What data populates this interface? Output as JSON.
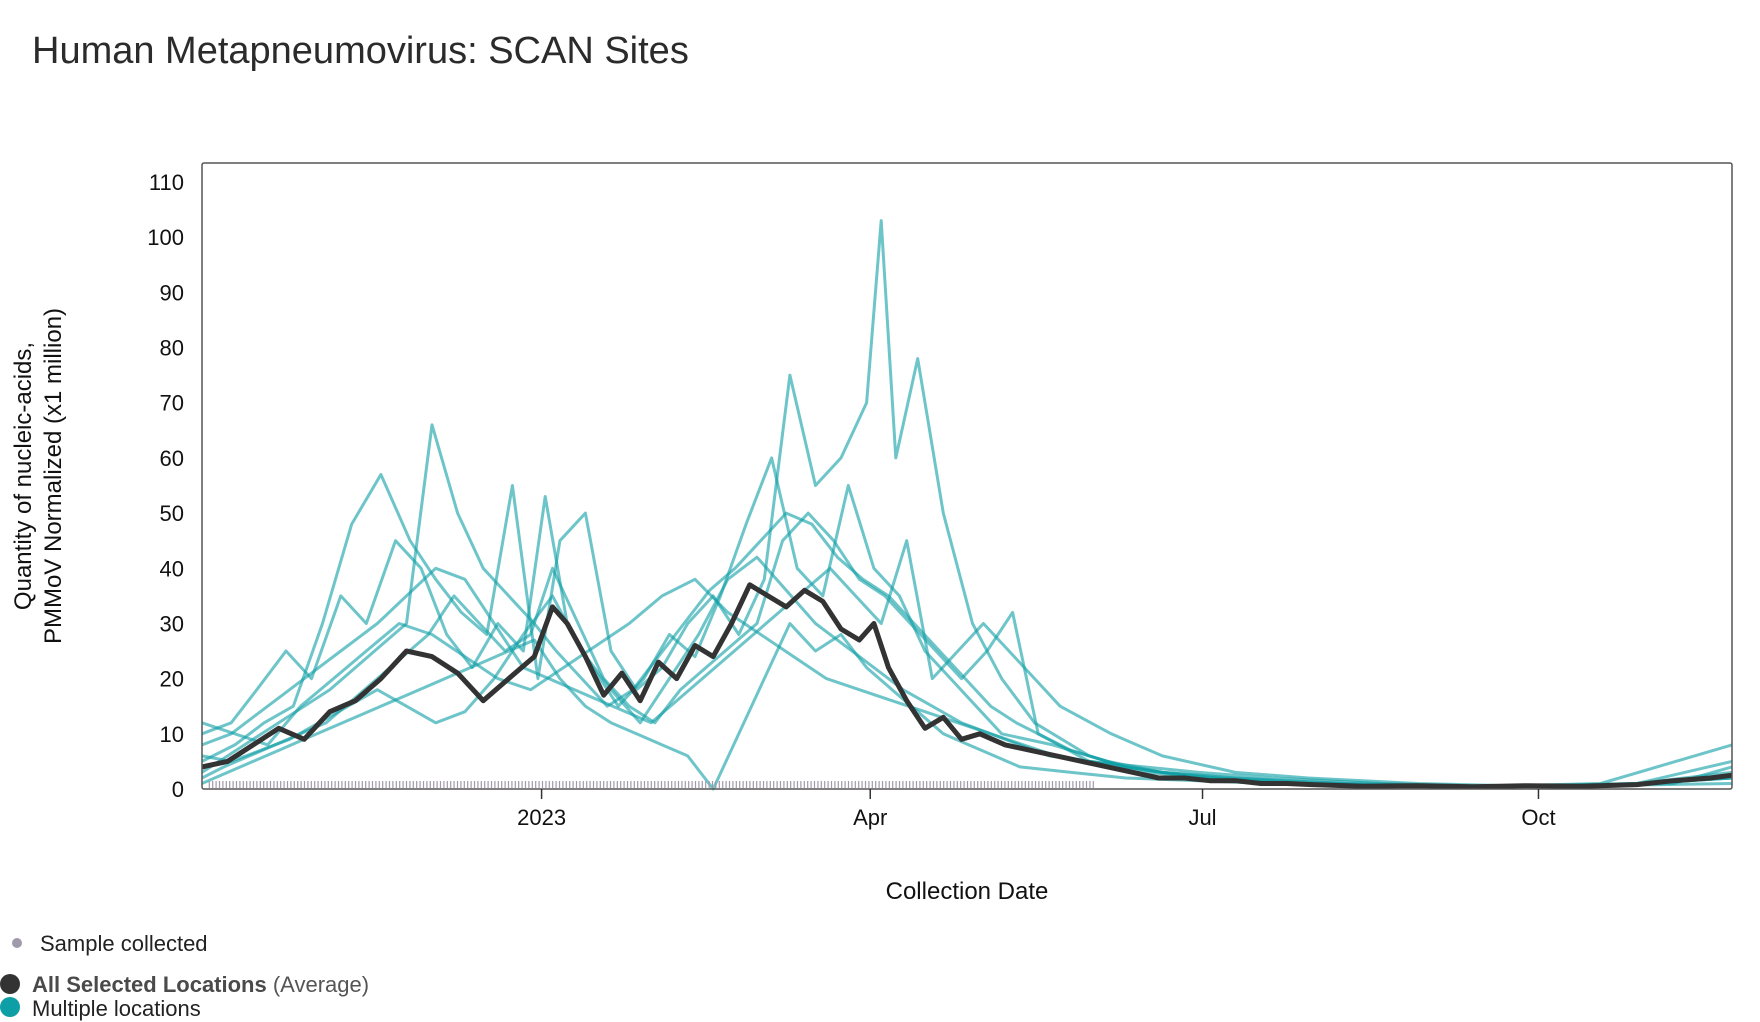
{
  "title": "Human Metapneumovirus: SCAN Sites",
  "colors": {
    "site": "#0e9ea5",
    "average": "#333333",
    "sample_marker": "#a09aaa",
    "frame": "#555555"
  },
  "legend": {
    "sample": "Sample collected",
    "average_label": "All Selected Locations",
    "average_suffix": "(Average)",
    "sites_label": "Multiple locations"
  },
  "chart_data": {
    "type": "line",
    "title": "Human Metapneumovirus: SCAN Sites",
    "xlabel": "Collection Date",
    "ylabel_line1": "Quantity of nucleic-acids,",
    "ylabel_line2": "PMMoV Normalized (x1 million)",
    "x_start": "2022-09-30",
    "x_end": "2023-11-23",
    "x_range_days": [
      -93,
      326
    ],
    "ylim": [
      0,
      110
    ],
    "yticks": [
      0,
      10,
      20,
      30,
      40,
      50,
      60,
      70,
      80,
      90,
      100,
      110
    ],
    "ytick_labels": [
      "0",
      "10",
      "20",
      "30",
      "40",
      "50",
      "60",
      "70",
      "80",
      "90",
      "100",
      "110"
    ],
    "xticks": [
      {
        "day": 0,
        "label": "2023"
      },
      {
        "day": 90,
        "label": "Apr"
      },
      {
        "day": 181,
        "label": "Jul"
      },
      {
        "day": 273,
        "label": "Oct"
      }
    ],
    "x_unit": "days since 2023-01-01",
    "average_series": {
      "name": "All Selected Locations (Average)",
      "x": [
        -93,
        -86,
        -79,
        -72,
        -65,
        -58,
        -51,
        -44,
        -37,
        -30,
        -23,
        -16,
        -9,
        -2,
        3,
        7,
        12,
        17,
        22,
        27,
        32,
        37,
        42,
        47,
        52,
        57,
        62,
        67,
        72,
        77,
        82,
        87,
        91,
        95,
        100,
        105,
        110,
        115,
        120,
        127,
        134,
        141,
        148,
        155,
        162,
        169,
        176,
        183,
        190,
        197,
        204,
        211,
        225,
        240,
        255,
        270,
        285,
        300,
        310,
        320,
        326
      ],
      "values": [
        4,
        5,
        8,
        11,
        9,
        14,
        16,
        20,
        25,
        24,
        21,
        16,
        20,
        24,
        33,
        30,
        24,
        17,
        21,
        16,
        23,
        20,
        26,
        24,
        30,
        37,
        35,
        33,
        36,
        34,
        29,
        27,
        30,
        22,
        16,
        11,
        13,
        9,
        10,
        8,
        7,
        6,
        5,
        4,
        3,
        2,
        2,
        1.5,
        1.5,
        1,
        1,
        0.8,
        0.5,
        0.6,
        0.4,
        0.6,
        0.5,
        0.8,
        1.5,
        2,
        2.5
      ]
    },
    "site_series": [
      {
        "name": "site 1",
        "x": [
          -93,
          -85,
          -78,
          -70,
          -63,
          -55,
          -48,
          -40,
          -33,
          -26,
          -19,
          -12,
          -5,
          1,
          7,
          14,
          21,
          28,
          35,
          42,
          49,
          56,
          63,
          70,
          77,
          84,
          91,
          98,
          105,
          112,
          119,
          126,
          140,
          155,
          170,
          190,
          210,
          240,
          270,
          300,
          326
        ],
        "values": [
          10,
          12,
          18,
          25,
          20,
          35,
          30,
          45,
          40,
          28,
          22,
          30,
          25,
          53,
          30,
          22,
          15,
          20,
          28,
          24,
          35,
          48,
          60,
          40,
          35,
          55,
          40,
          35,
          25,
          20,
          15,
          10,
          8,
          5,
          3,
          2,
          1,
          0.5,
          0.5,
          1,
          2
        ]
      },
      {
        "name": "site 2",
        "x": [
          -93,
          -84,
          -76,
          -68,
          -60,
          -52,
          -44,
          -36,
          -29,
          -22,
          -15,
          -8,
          -1,
          5,
          12,
          19,
          26,
          33,
          40,
          47,
          54,
          61,
          68,
          75,
          82,
          89,
          93,
          97,
          103,
          110,
          118,
          126,
          135,
          150,
          165,
          185,
          205,
          235,
          265,
          300,
          326
        ],
        "values": [
          5,
          8,
          12,
          15,
          30,
          48,
          57,
          45,
          38,
          32,
          28,
          55,
          20,
          45,
          50,
          25,
          18,
          22,
          30,
          35,
          28,
          38,
          75,
          55,
          60,
          70,
          103,
          60,
          78,
          50,
          30,
          20,
          12,
          6,
          3,
          2,
          1,
          0.5,
          0.5,
          1,
          3
        ]
      },
      {
        "name": "site 3",
        "x": [
          -93,
          -86,
          -79,
          -72,
          -65,
          -58,
          -51,
          -44,
          -37,
          -30,
          -23,
          -16,
          -9,
          -2,
          4,
          11,
          18,
          25,
          32,
          39,
          46,
          53,
          60,
          67,
          74,
          81,
          88,
          95,
          102,
          109,
          116,
          123,
          130,
          145,
          160,
          180,
          200,
          230,
          260,
          290,
          326
        ],
        "values": [
          3,
          6,
          9,
          12,
          15,
          18,
          22,
          26,
          30,
          66,
          50,
          40,
          35,
          30,
          25,
          20,
          15,
          18,
          24,
          30,
          36,
          40,
          45,
          50,
          48,
          42,
          38,
          35,
          30,
          25,
          20,
          15,
          12,
          7,
          4,
          2,
          1,
          0.5,
          0.5,
          0.5,
          2
        ]
      },
      {
        "name": "site 4",
        "x": [
          -93,
          -87,
          -80,
          -73,
          -66,
          -59,
          -52,
          -45,
          -38,
          -31,
          -24,
          -17,
          -10,
          -3,
          3,
          10,
          17,
          24,
          31,
          38,
          45,
          52,
          59,
          66,
          73,
          80,
          87,
          94,
          101,
          108,
          115,
          122,
          129,
          136,
          150,
          170,
          190,
          220,
          250,
          280,
          326
        ],
        "values": [
          2,
          4,
          6,
          8,
          10,
          12,
          16,
          20,
          24,
          28,
          35,
          30,
          25,
          28,
          40,
          30,
          20,
          15,
          12,
          18,
          22,
          26,
          30,
          45,
          50,
          45,
          38,
          35,
          30,
          25,
          20,
          25,
          32,
          10,
          5,
          3,
          2,
          1,
          0.5,
          0.5,
          1
        ]
      },
      {
        "name": "site 5",
        "x": [
          -93,
          -85,
          -77,
          -69,
          -61,
          -53,
          -45,
          -37,
          -29,
          -21,
          -13,
          -5,
          2,
          9,
          16,
          23,
          30,
          37,
          44,
          51,
          58,
          65,
          72,
          79,
          86,
          93,
          100,
          107,
          114,
          121,
          128,
          135,
          142,
          156,
          170,
          190,
          210,
          240,
          270,
          300,
          326
        ],
        "values": [
          8,
          10,
          14,
          18,
          22,
          26,
          30,
          35,
          40,
          38,
          30,
          22,
          20,
          18,
          16,
          14,
          12,
          16,
          20,
          24,
          28,
          32,
          36,
          40,
          35,
          30,
          45,
          20,
          25,
          30,
          25,
          20,
          15,
          10,
          6,
          3,
          2,
          1,
          0.5,
          1,
          5
        ]
      },
      {
        "name": "site 6",
        "x": [
          -93,
          -86,
          -79,
          -72,
          -65,
          -58,
          -51,
          -44,
          -37,
          -30,
          -23,
          -16,
          -9,
          -2,
          5,
          12,
          19,
          26,
          33,
          40,
          47,
          54,
          61,
          68,
          75,
          82,
          89,
          96,
          103,
          110,
          117,
          124,
          131,
          145,
          160,
          180,
          200,
          230,
          260,
          290,
          326
        ],
        "values": [
          1,
          3,
          5,
          7,
          9,
          11,
          13,
          15,
          17,
          19,
          21,
          23,
          25,
          27,
          20,
          15,
          12,
          10,
          8,
          6,
          0,
          10,
          20,
          30,
          25,
          28,
          22,
          18,
          14,
          10,
          8,
          6,
          4,
          3,
          2,
          1.5,
          1,
          0.5,
          0.5,
          1,
          8
        ]
      },
      {
        "name": "site 7",
        "x": [
          -93,
          -84,
          -75,
          -66,
          -57,
          -48,
          -39,
          -30,
          -21,
          -12,
          -3,
          6,
          15,
          24,
          33,
          42,
          51,
          60,
          69,
          78,
          87,
          96,
          105,
          114,
          123,
          132,
          141,
          150,
          160,
          170,
          185,
          200,
          220,
          250,
          280,
          310,
          326
        ],
        "values": [
          12,
          10,
          8,
          15,
          20,
          25,
          30,
          28,
          24,
          20,
          18,
          22,
          26,
          30,
          35,
          38,
          32,
          28,
          24,
          20,
          18,
          16,
          14,
          12,
          10,
          8,
          6,
          5,
          4,
          3,
          2,
          1.5,
          1,
          0.5,
          0.5,
          1,
          4
        ]
      },
      {
        "name": "site 8",
        "x": [
          -93,
          -85,
          -77,
          -69,
          -61,
          -53,
          -45,
          -37,
          -29,
          -21,
          -13,
          -5,
          3,
          11,
          19,
          27,
          35,
          43,
          51,
          59,
          67,
          75,
          83,
          91,
          99,
          107,
          115,
          123,
          131,
          139,
          150,
          165,
          180,
          200,
          230,
          260,
          290,
          326
        ],
        "values": [
          6,
          5,
          7,
          9,
          12,
          15,
          18,
          15,
          12,
          14,
          20,
          28,
          35,
          25,
          18,
          12,
          20,
          28,
          38,
          42,
          36,
          30,
          26,
          22,
          18,
          15,
          12,
          10,
          8,
          6,
          5,
          4,
          3,
          2,
          1,
          0.5,
          0.5,
          2
        ]
      }
    ]
  }
}
